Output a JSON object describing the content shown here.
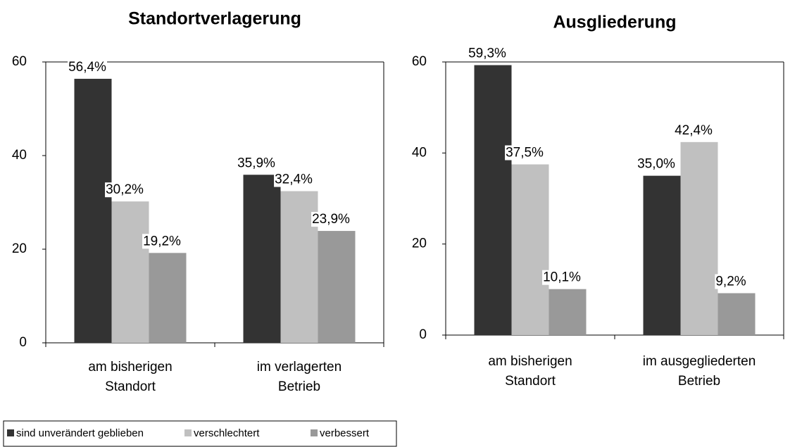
{
  "chart_data": [
    {
      "type": "bar",
      "title": "Standortverlagerung",
      "categories": [
        [
          "am bisherigen",
          "Standort"
        ],
        [
          "im verlagerten",
          "Betrieb"
        ]
      ],
      "series": [
        {
          "name": "sind unverändert geblieben",
          "color": "#333333",
          "values": [
            56.4,
            35.9
          ],
          "value_labels": [
            "56,4%",
            "35,9%"
          ]
        },
        {
          "name": "verschlechtert",
          "color": "#c0c0c0",
          "values": [
            30.2,
            32.4
          ],
          "value_labels": [
            "30,2%",
            "32,4%"
          ]
        },
        {
          "name": "verbessert",
          "color": "#999999",
          "values": [
            19.2,
            23.9
          ],
          "value_labels": [
            "19,2%",
            "23,9%"
          ]
        }
      ],
      "ylim": [
        0,
        60
      ],
      "yticks": [
        0,
        20,
        40,
        60
      ]
    },
    {
      "type": "bar",
      "title": "Ausgliederung",
      "categories": [
        [
          "am bisherigen",
          "Standort"
        ],
        [
          "im ausgegliederten",
          "Betrieb"
        ]
      ],
      "series": [
        {
          "color": "#333333",
          "values": [
            59.3,
            35.0
          ],
          "value_labels": [
            "59,3%",
            "35,0%"
          ]
        },
        {
          "color": "#c0c0c0",
          "values": [
            37.5,
            42.4
          ],
          "value_labels": [
            "37,5%",
            "42,4%"
          ]
        },
        {
          "color": "#999999",
          "values": [
            10.1,
            9.2
          ],
          "value_labels": [
            "10,1%",
            "9,2%"
          ]
        }
      ],
      "ylim": [
        0,
        60
      ],
      "yticks": [
        0,
        20,
        40,
        60
      ]
    }
  ]
}
